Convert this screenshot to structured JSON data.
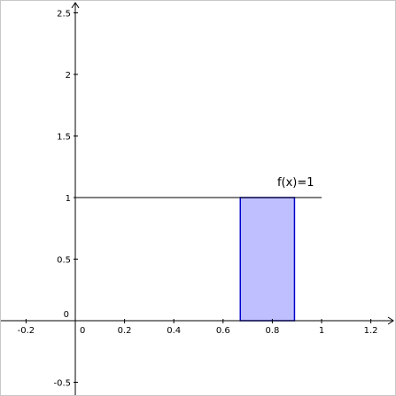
{
  "chart_data": {
    "type": "area",
    "xlim": [
      -0.3,
      1.3
    ],
    "ylim": [
      -0.6,
      2.55
    ],
    "grid": false,
    "x_ticks": [
      -0.2,
      0.2,
      0.4,
      0.6,
      0.8,
      1,
      1.2
    ],
    "x_tick_labels": [
      "-0.2",
      "0.2",
      "0.4",
      "0.6",
      "0.8",
      "1",
      "1.2"
    ],
    "y_ticks": [
      -0.5,
      0.5,
      1,
      1.5,
      2,
      2.5
    ],
    "y_tick_labels": [
      "-0.5",
      "0.5",
      "1",
      "1.5",
      "2",
      "2.5"
    ],
    "origin_labels": {
      "x": "0",
      "y": "0"
    },
    "function": {
      "label": "f(x)=1",
      "x_start": 0,
      "x_end": 1,
      "y": 1,
      "color": "#000000"
    },
    "shaded_region": {
      "x_from": 0.67,
      "x_to": 0.89,
      "y_from": 0,
      "y_to": 1,
      "fill": "#bfbfff",
      "stroke": "#0000cc"
    }
  }
}
